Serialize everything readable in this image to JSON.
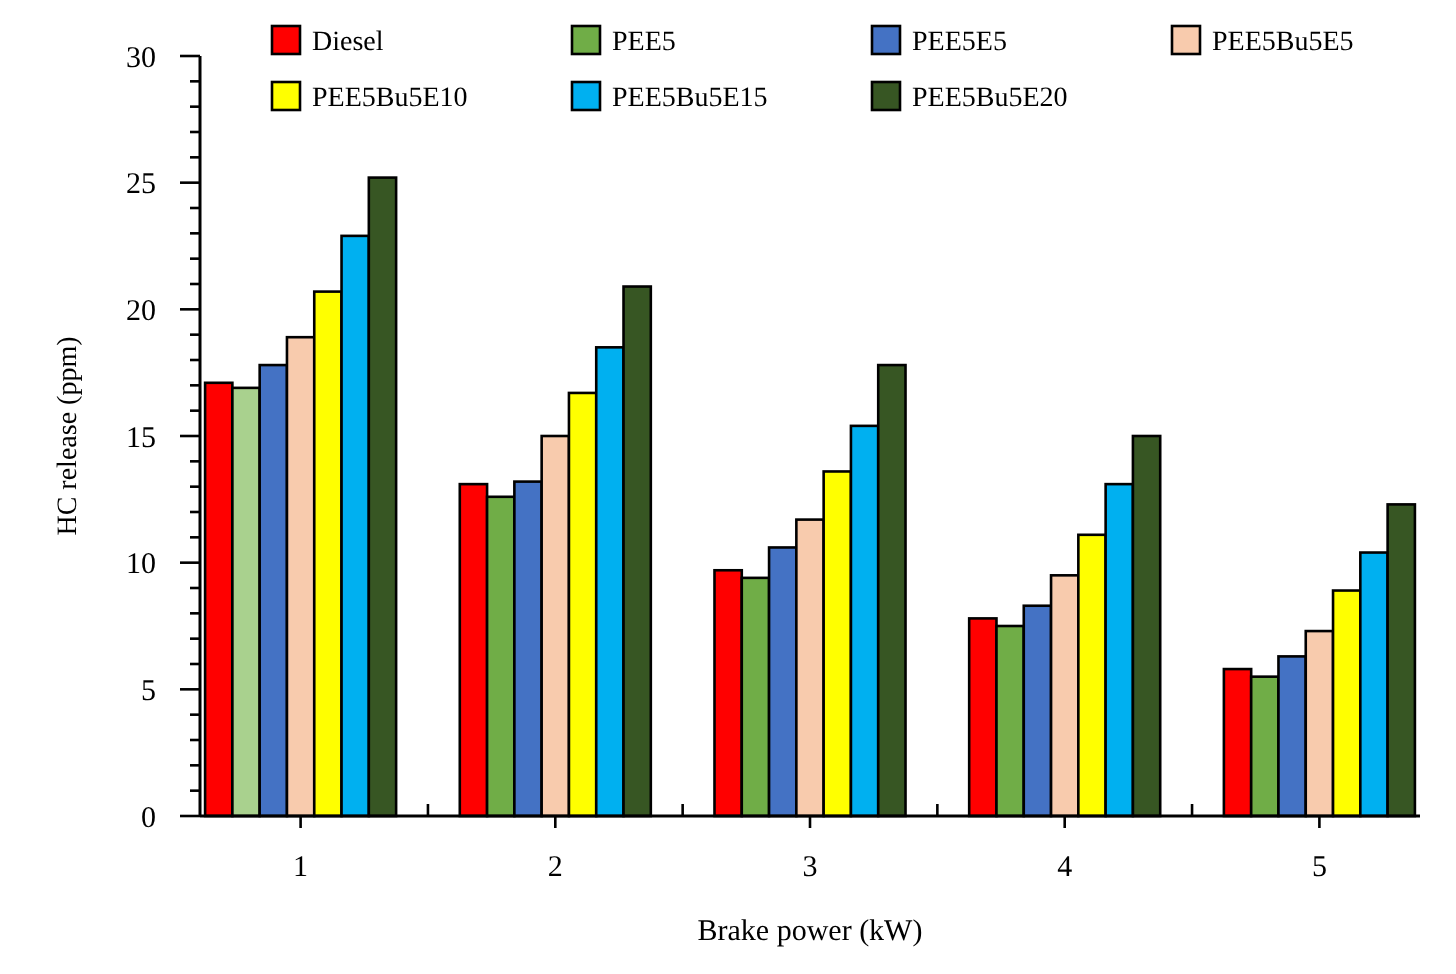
{
  "chart_data": {
    "type": "bar",
    "xlabel": "Brake power (kW)",
    "ylabel": "HC release (ppm)",
    "categories": [
      "1",
      "2",
      "3",
      "4",
      "5"
    ],
    "series": [
      {
        "name": "Diesel",
        "color": "#ff0000",
        "values": [
          17.1,
          13.1,
          9.7,
          7.8,
          5.8
        ]
      },
      {
        "name": "PEE5",
        "color": "#70ad47",
        "colors": [
          "#a9d18e",
          "#70ad47",
          "#70ad47",
          "#70ad47",
          "#70ad47"
        ],
        "values": [
          16.9,
          12.6,
          9.4,
          7.5,
          5.5
        ]
      },
      {
        "name": "PEE5E5",
        "color": "#4472c4",
        "values": [
          17.8,
          13.2,
          10.6,
          8.3,
          6.3
        ]
      },
      {
        "name": "PEE5Bu5E5",
        "color": "#f8cbad",
        "values": [
          18.9,
          15.0,
          11.7,
          9.5,
          7.3
        ]
      },
      {
        "name": "PEE5Bu5E10",
        "color": "#ffff00",
        "values": [
          20.7,
          16.7,
          13.6,
          11.1,
          8.9
        ]
      },
      {
        "name": "PEE5Bu5E15",
        "color": "#00b0f0",
        "values": [
          22.9,
          18.5,
          15.4,
          13.1,
          10.4
        ]
      },
      {
        "name": "PEE5Bu5E20",
        "color": "#375623",
        "values": [
          25.2,
          20.9,
          17.8,
          15.0,
          12.3
        ]
      }
    ],
    "ylim": [
      0,
      30
    ],
    "yticks": [
      0,
      {
        "value": 1,
        "label": null
      },
      {
        "value": 2,
        "label": null
      },
      {
        "value": 3,
        "label": null
      },
      {
        "value": 4,
        "label": null
      },
      5,
      {
        "value": 6,
        "label": null
      },
      {
        "value": 7,
        "label": null
      },
      {
        "value": 8,
        "label": null
      },
      {
        "value": 9,
        "label": null
      },
      10,
      {
        "value": 11,
        "label": null
      },
      {
        "value": 12,
        "label": null
      },
      {
        "value": 13,
        "label": null
      },
      {
        "value": 14,
        "label": null
      },
      15,
      {
        "value": 16,
        "label": null
      },
      {
        "value": 17,
        "label": null
      },
      {
        "value": 18,
        "label": null
      },
      {
        "value": 19,
        "label": null
      },
      20,
      {
        "value": 21,
        "label": null
      },
      {
        "value": 22,
        "label": null
      },
      {
        "value": 23,
        "label": null
      },
      {
        "value": 24,
        "label": null
      },
      25,
      {
        "value": 26,
        "label": null
      },
      {
        "value": 27,
        "label": null
      },
      {
        "value": 28,
        "label": null
      },
      {
        "value": 29,
        "label": null
      },
      30
    ],
    "grid": false,
    "legend": "top"
  }
}
